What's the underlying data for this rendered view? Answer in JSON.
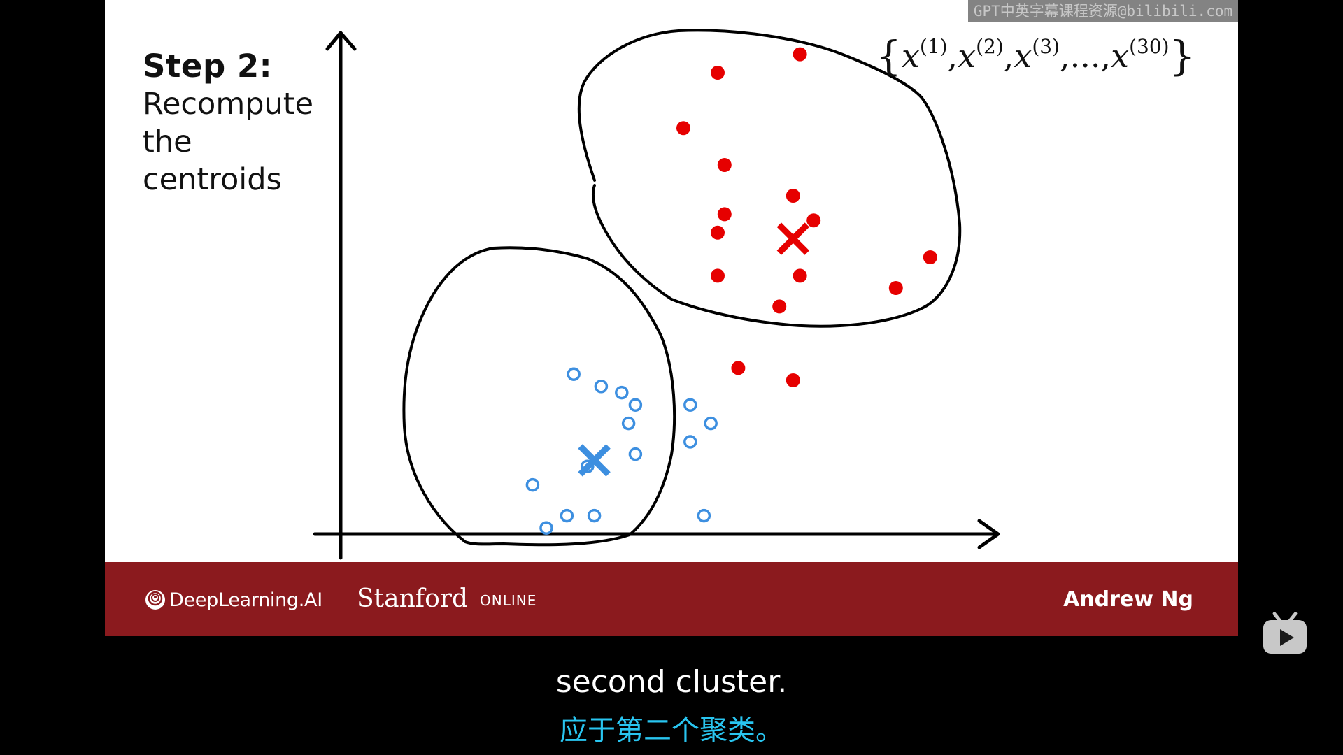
{
  "slide": {
    "step_title": "Step 2:",
    "step_subtitle_lines": [
      "Recompute",
      "the",
      "centroids"
    ],
    "set_notation": {
      "open_brace": "{",
      "close_brace": "}",
      "var": "x",
      "terms": [
        "(1)",
        "(2)",
        "(3)"
      ],
      "ellipsis": "...",
      "last_term": "(30)",
      "comma": ","
    },
    "colors": {
      "cluster_red": "#e60000",
      "cluster_blue": "#3d8fe0",
      "footer": "#8b1a1e",
      "subtitle_zh": "#29c5f0"
    },
    "chart_data": {
      "type": "scatter",
      "xlabel": "",
      "ylabel": "",
      "series": [
        {
          "name": "",
          "marker": "filled-circle",
          "color": "#e60000",
          "points": [
            [
              6.7,
              7.8
            ],
            [
              5.5,
              7.5
            ],
            [
              5.0,
              6.6
            ],
            [
              5.6,
              6.0
            ],
            [
              5.6,
              5.2
            ],
            [
              5.5,
              4.9
            ],
            [
              5.5,
              4.2
            ],
            [
              6.6,
              5.5
            ],
            [
              6.9,
              5.1
            ],
            [
              6.7,
              4.2
            ],
            [
              6.4,
              3.7
            ],
            [
              8.6,
              4.5
            ],
            [
              8.1,
              4.0
            ],
            [
              5.8,
              2.7
            ],
            [
              6.6,
              2.5
            ]
          ],
          "centroid": [
            6.6,
            4.8
          ]
        },
        {
          "name": "",
          "marker": "hollow-circle",
          "color": "#3d8fe0",
          "points": [
            [
              3.4,
              2.6
            ],
            [
              3.8,
              2.4
            ],
            [
              4.1,
              2.3
            ],
            [
              4.3,
              2.1
            ],
            [
              4.2,
              1.8
            ],
            [
              5.1,
              2.1
            ],
            [
              5.4,
              1.8
            ],
            [
              5.1,
              1.5
            ],
            [
              4.3,
              1.3
            ],
            [
              3.6,
              1.1
            ],
            [
              2.8,
              0.8
            ],
            [
              3.3,
              0.3
            ],
            [
              3.7,
              0.3
            ],
            [
              5.3,
              0.3
            ],
            [
              3.0,
              0.1
            ]
          ],
          "centroid": [
            3.7,
            1.2
          ]
        }
      ]
    }
  },
  "footer": {
    "deeplearning_logo": "DeepLearning.AI",
    "stanford_logo": "Stanford",
    "online_label": "ONLINE",
    "author": "Andrew Ng"
  },
  "watermark": "GPT中英字幕课程资源@bilibili.com",
  "subtitles": {
    "english": "second cluster.",
    "chinese": "应于第二个聚类。"
  },
  "icons": {
    "player_button": "bilibili-tv-icon"
  }
}
